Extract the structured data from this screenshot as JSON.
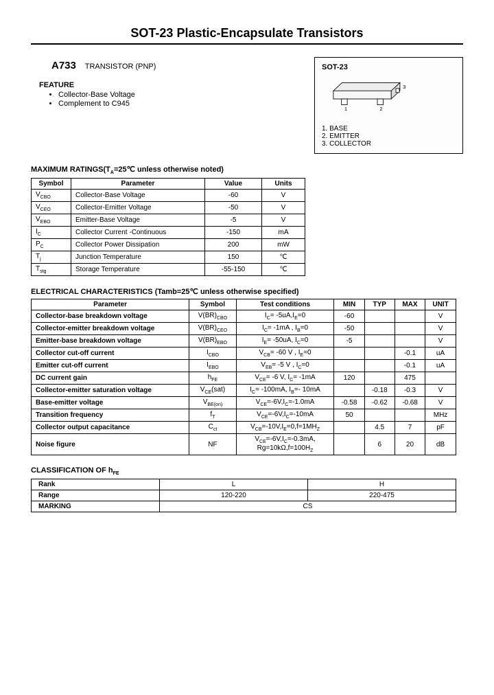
{
  "title": "SOT-23 Plastic-Encapsulate Transistors",
  "part_number": "A733",
  "part_type": "TRANSISTOR (PNP)",
  "feature_heading": "FEATURE",
  "features": [
    "Collector-Base Voltage",
    "Complement to C945"
  ],
  "package": {
    "name": "SOT-23",
    "pins": [
      {
        "num": "1",
        "label": "BASE"
      },
      {
        "num": "2",
        "label": "EMITTER"
      },
      {
        "num": "3",
        "label": "COLLECTOR"
      }
    ],
    "pin_labels_on_drawing": {
      "p1": "1",
      "p2": "2",
      "p3": "3"
    },
    "body_fill": "#ededed",
    "line_color": "#000000"
  },
  "ratings_heading_prefix": "MAXIMUM RATINGS(T",
  "ratings_heading_sub": "A",
  "ratings_heading_suffix": "=25℃ unless otherwise noted)",
  "ratings": {
    "headers": [
      "Symbol",
      "Parameter",
      "Value",
      "Units"
    ],
    "rows": [
      {
        "sym_pre": "V",
        "sym_sub": "CBO",
        "param": "Collector-Base Voltage",
        "value": "-60",
        "unit": "V"
      },
      {
        "sym_pre": "V",
        "sym_sub": "CEO",
        "param": "Collector-Emitter Voltage",
        "value": "-50",
        "unit": "V"
      },
      {
        "sym_pre": "V",
        "sym_sub": "EBO",
        "param": "Emitter-Base Voltage",
        "value": "-5",
        "unit": "V"
      },
      {
        "sym_pre": "I",
        "sym_sub": "C",
        "param": "Collector Current -Continuous",
        "value": "-150",
        "unit": "mA"
      },
      {
        "sym_pre": "P",
        "sym_sub": "C",
        "param": "Collector Power Dissipation",
        "value": "200",
        "unit": "mW"
      },
      {
        "sym_pre": "T",
        "sym_sub": "j",
        "param": "Junction Temperature",
        "value": "150",
        "unit": "℃"
      },
      {
        "sym_pre": "T",
        "sym_sub": "stg",
        "param": "Storage Temperature",
        "value": "-55-150",
        "unit": "℃"
      }
    ]
  },
  "elec_heading": "ELECTRICAL CHARACTERISTICS (Tamb=25℃ unless otherwise specified)",
  "elec": {
    "headers": [
      "Parameter",
      "Symbol",
      "Test   conditions",
      "MIN",
      "TYP",
      "MAX",
      "UNIT"
    ],
    "rows": [
      {
        "param": "Collector-base breakdown voltage",
        "sym_html": "V(BR)<sub>CBO</sub>",
        "tc": "I<sub>C</sub>= -5uA,I<sub>E</sub>=0",
        "min": "-60",
        "typ": "",
        "max": "",
        "unit": "V"
      },
      {
        "param": "Collector-emitter breakdown voltage",
        "sym_html": "V(BR)<sub>CEO</sub>",
        "tc": "I<sub>C</sub>= -1mA ,   I<sub>B</sub>=0",
        "min": "-50",
        "typ": "",
        "max": "",
        "unit": "V"
      },
      {
        "param": "Emitter-base breakdown voltage",
        "sym_html": "V(BR)<sub>EBO</sub>",
        "tc": "I<sub>E</sub>= -50uA, I<sub>C</sub>=0",
        "min": "-5",
        "typ": "",
        "max": "",
        "unit": "V"
      },
      {
        "param": "Collector cut-off current",
        "sym_html": "I<sub>CBO</sub>",
        "tc": "V<sub>CB</sub>= -60 V ,   I<sub>E</sub>=0",
        "min": "",
        "typ": "",
        "max": "-0.1",
        "unit": "uA"
      },
      {
        "param": "Emitter cut-off current",
        "sym_html": "I<sub>EBO</sub>",
        "tc": "V<sub>EB</sub>= -5 V ,    I<sub>C</sub>=0",
        "min": "",
        "typ": "",
        "max": "-0.1",
        "unit": "uA"
      },
      {
        "param": "DC current gain",
        "sym_html": "h<sub>FE</sub>",
        "tc": "V<sub>CE</sub>= -6 V, I<sub>C</sub>= -1mA",
        "min": "120",
        "typ": "",
        "max": "475",
        "unit": ""
      },
      {
        "param": "Collector-emitter saturation voltage",
        "sym_html": "V<sub>CE</sub>(sat)",
        "tc": "I<sub>C</sub>= -100mA, I<sub>B</sub>=- 10mA",
        "min": "",
        "typ": "-0.18",
        "max": "-0.3",
        "unit": "V"
      },
      {
        "param": "Base-emitter voltage",
        "sym_html": "V<sub>BE(on)</sub>",
        "tc": "V<sub>CE</sub>=-6V,I<sub>C</sub>=-1.0mA",
        "min": "-0.58",
        "typ": "-0.62",
        "max": "-0.68",
        "unit": "V"
      },
      {
        "param": "Transition frequency",
        "sym_html": "f<sub>T</sub>",
        "tc": "V<sub>CE</sub>=-6V,I<sub>C</sub>=-10mA",
        "min": "50",
        "typ": "",
        "max": "",
        "unit": "MHz"
      },
      {
        "param": "Collector output capacitance",
        "sym_html": "C<sub>ct</sub>",
        "tc": "V<sub>CB</sub>=-10V,I<sub>E</sub>=0,f=1MH<sub>Z</sub>",
        "min": "",
        "typ": "4.5",
        "max": "7",
        "unit": "pF"
      },
      {
        "param": "Noise figure",
        "sym_html": "NF",
        "tc": "V<sub>CE</sub>=-6V,I<sub>C</sub>=-0.3mA,<br>Rg=10kΩ,f=100H<sub>Z</sub>",
        "min": "",
        "typ": "6",
        "max": "20",
        "unit": "dB"
      }
    ]
  },
  "hfe_heading_html": "CLASSIFICATION OF h<sub>FE</sub>",
  "hfe": {
    "rank_label": "Rank",
    "range_label": "Range",
    "marking_label": "MARKING",
    "col_l": "L",
    "col_h": "H",
    "range_l": "120-220",
    "range_h": "220-475",
    "marking_value": "CS"
  }
}
